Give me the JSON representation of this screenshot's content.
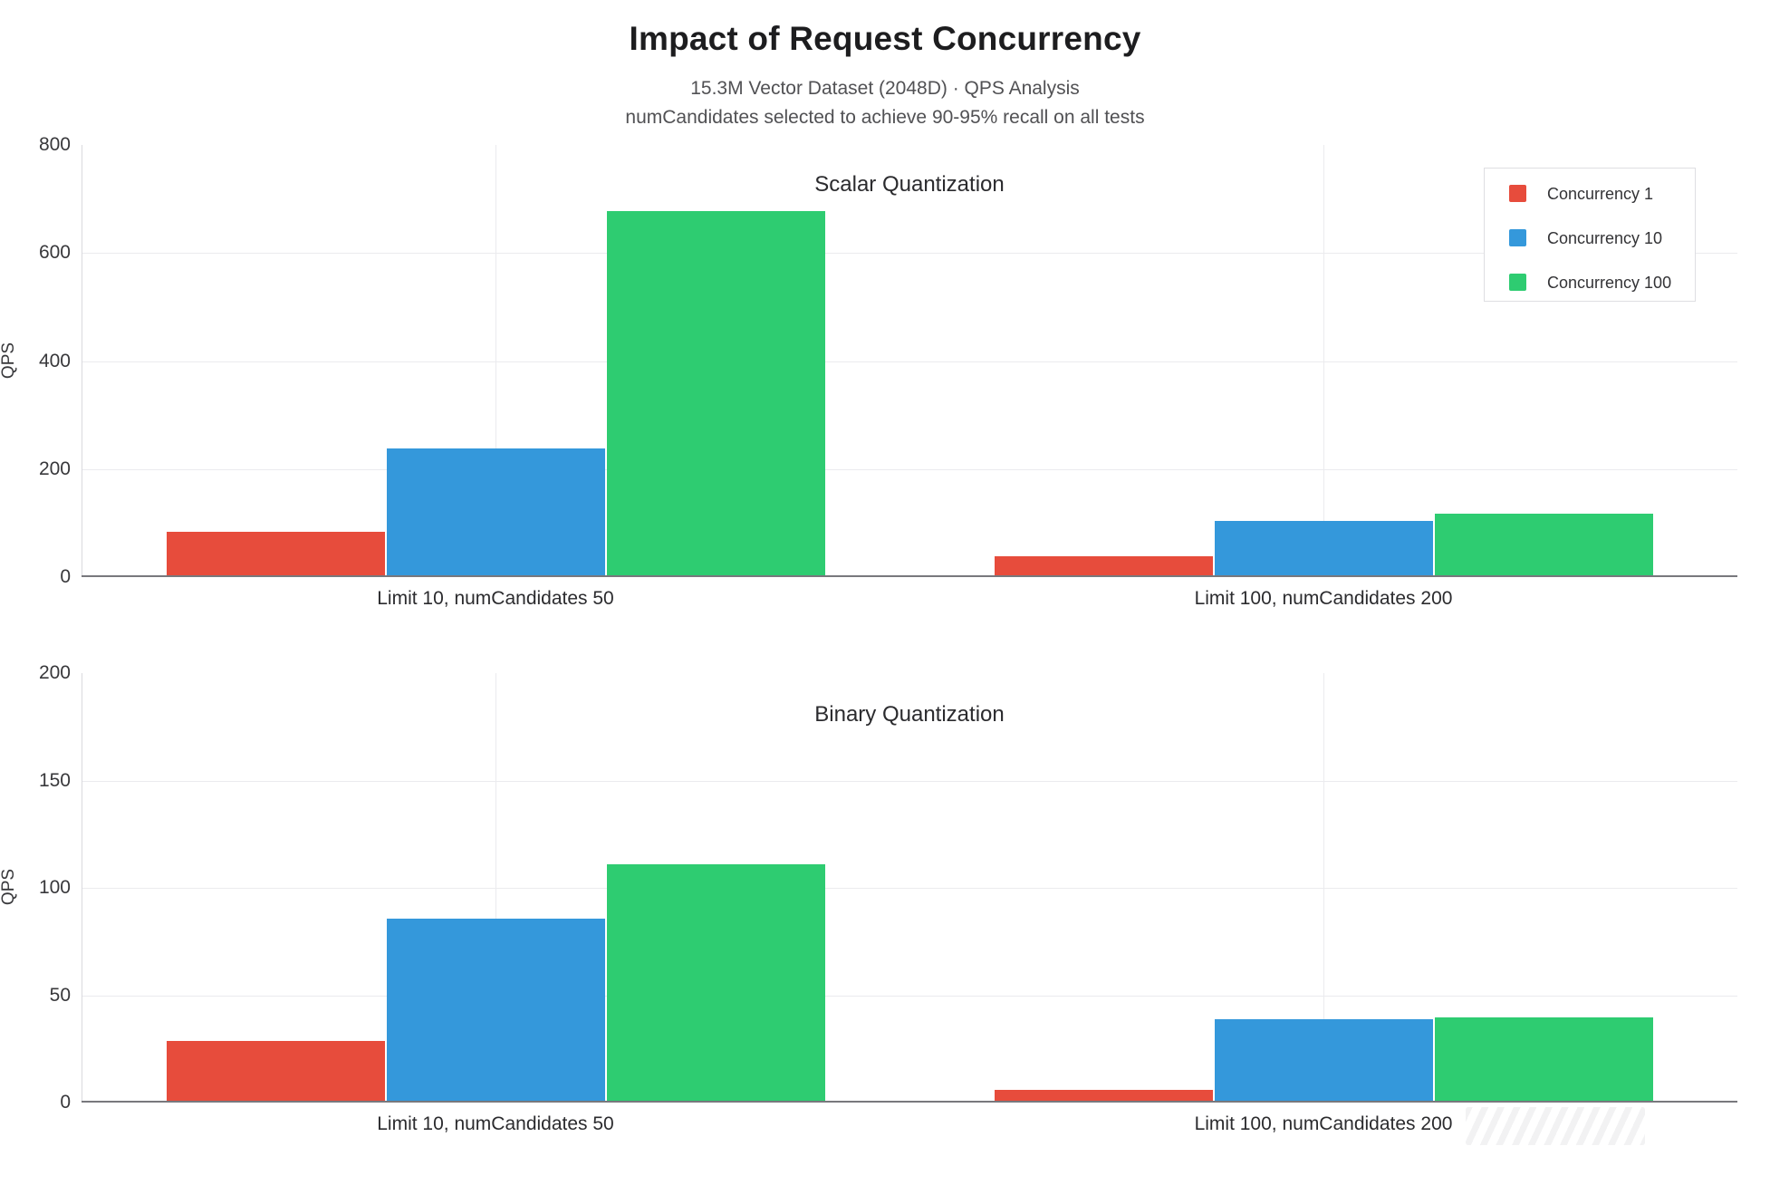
{
  "header": {
    "title": "Impact of Request Concurrency",
    "subtitle1": "15.3M Vector Dataset (2048D) · QPS Analysis",
    "subtitle2": "numCandidates selected to achieve 90-95% recall on all tests"
  },
  "legend": {
    "position": "top-right",
    "items": [
      {
        "label": "Concurrency 1",
        "color": "#e74c3c"
      },
      {
        "label": "Concurrency 10",
        "color": "#3498db"
      },
      {
        "label": "Concurrency 100",
        "color": "#2ecc71"
      }
    ]
  },
  "chart_data": [
    {
      "type": "bar",
      "title": "Scalar Quantization",
      "ylabel": "QPS",
      "ylim": [
        0,
        800
      ],
      "yticks": [
        0,
        200,
        400,
        600,
        800
      ],
      "grid": true,
      "legend_position": "top-right",
      "categories": [
        "Limit 10, numCandidates 50",
        "Limit 100, numCandidates 200"
      ],
      "series": [
        {
          "name": "Concurrency 1",
          "color": "#e74c3c",
          "values": [
            80,
            35
          ]
        },
        {
          "name": "Concurrency 10",
          "color": "#3498db",
          "values": [
            235,
            100
          ]
        },
        {
          "name": "Concurrency 100",
          "color": "#2ecc71",
          "values": [
            675,
            114
          ]
        }
      ]
    },
    {
      "type": "bar",
      "title": "Binary Quantization",
      "ylabel": "QPS",
      "ylim": [
        0,
        200
      ],
      "yticks": [
        0,
        50,
        100,
        150,
        200
      ],
      "grid": true,
      "categories": [
        "Limit 10, numCandidates 50",
        "Limit 100, numCandidates 200"
      ],
      "series": [
        {
          "name": "Concurrency 1",
          "color": "#e74c3c",
          "values": [
            28,
            5
          ]
        },
        {
          "name": "Concurrency 10",
          "color": "#3498db",
          "values": [
            85,
            38
          ]
        },
        {
          "name": "Concurrency 100",
          "color": "#2ecc71",
          "values": [
            110,
            39
          ]
        }
      ]
    }
  ],
  "colors": {
    "concurrency_1": "#e74c3c",
    "concurrency_10": "#3498db",
    "concurrency_100": "#2ecc71",
    "gridline": "#ebebee",
    "axis_line": "#78787d",
    "title_text": "#1d1d1f",
    "subtitle_text": "#515154"
  }
}
